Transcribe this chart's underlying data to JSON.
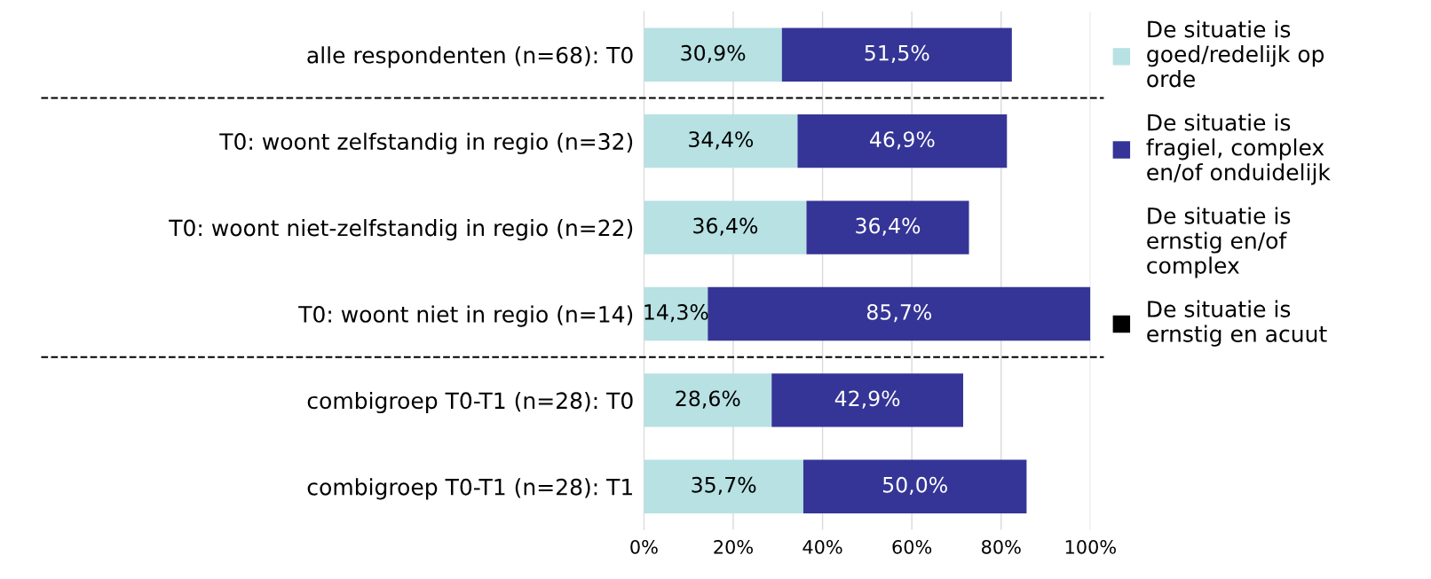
{
  "chart_data": {
    "type": "bar",
    "orientation": "horizontal",
    "stacked": true,
    "categories": [
      "alle respondenten (n=68): T0",
      "T0: woont zelfstandig in regio (n=32)",
      "T0: woont niet-zelfstandig in regio (n=22)",
      "T0: woont niet in regio (n=14)",
      "combigroep T0-T1 (n=28): T0",
      "combigroep T0-T1 (n=28): T1"
    ],
    "series": [
      {
        "name": "De situatie is\ngoed/redelijk op\norde",
        "color": "#b7e1e3",
        "values": [
          30.9,
          34.4,
          36.4,
          14.3,
          28.6,
          35.7
        ],
        "value_labels": [
          "30,9%",
          "34,4%",
          "36,4%",
          "14,3%",
          "28,6%",
          "35,7%"
        ]
      },
      {
        "name": "De situatie is\nfragiel, complex\nen/of onduidelijk",
        "color": "#353597",
        "values": [
          51.5,
          46.9,
          36.4,
          85.7,
          42.9,
          50.0
        ],
        "value_labels": [
          "51,5%",
          "46,9%",
          "36,4%",
          "85,7%",
          "42,9%",
          "50,0%"
        ]
      },
      {
        "name": "De situatie is\nernstig en/of\ncomplex",
        "values": [
          null,
          null,
          null,
          null,
          null,
          null
        ]
      },
      {
        "name": "De situatie is\nernstig en acuut",
        "color": "#000000",
        "values": [
          null,
          null,
          null,
          null,
          null,
          null
        ]
      }
    ],
    "xlim": [
      0,
      100
    ],
    "xticks": [
      {
        "value": 0,
        "label": "0%"
      },
      {
        "value": 20,
        "label": "20%"
      },
      {
        "value": 40,
        "label": "40%"
      },
      {
        "value": 60,
        "label": "60%"
      },
      {
        "value": 80,
        "label": "80%"
      },
      {
        "value": 100,
        "label": "100%"
      }
    ],
    "grid": "x",
    "legend": "right",
    "marker": "square"
  }
}
